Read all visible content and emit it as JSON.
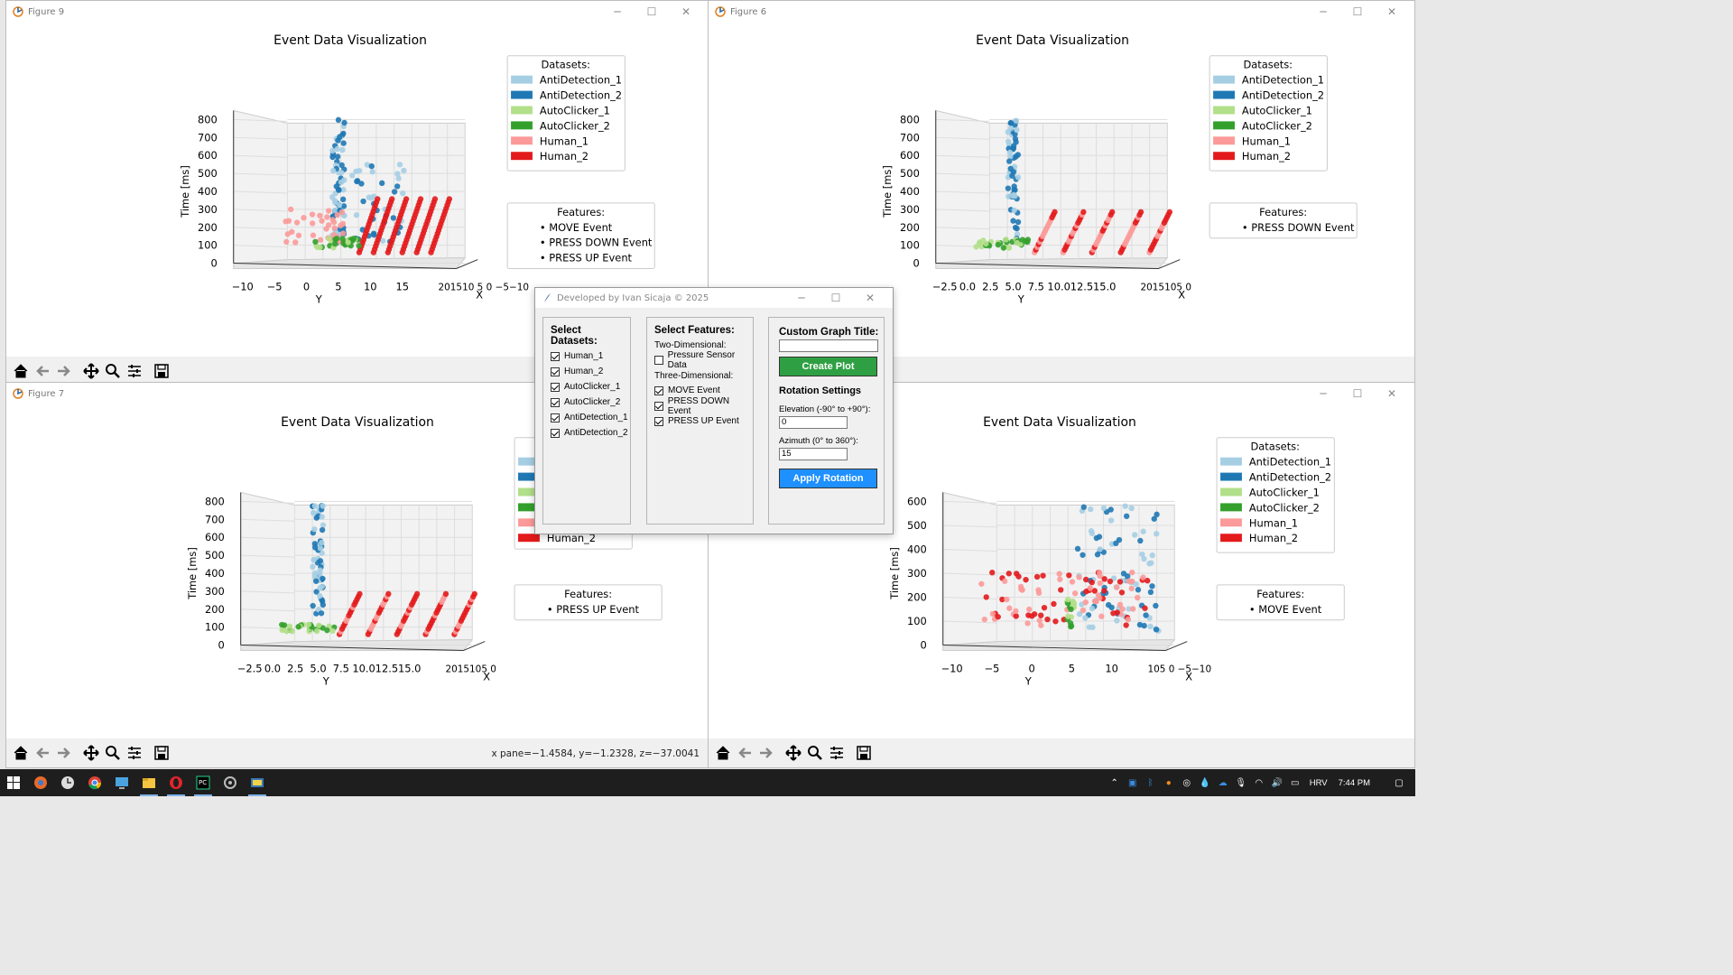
{
  "colors": {
    "AntiDetection_1": "#a6cee3",
    "AntiDetection_2": "#1f78b4",
    "AutoClicker_1": "#b2df8a",
    "AutoClicker_2": "#33a02c",
    "Human_1": "#fb9a99",
    "Human_2": "#e31a1c",
    "green_button": "#2ea043",
    "blue_button": "#1e90ff"
  },
  "windows": [
    {
      "id": "fig9",
      "title": "Figure 9",
      "chart_title": "Event Data Visualization",
      "datasets_header": "Datasets:",
      "datasets": [
        "AntiDetection_1",
        "AntiDetection_2",
        "AutoClicker_1",
        "AutoClicker_2",
        "Human_1",
        "Human_2"
      ],
      "features_header": "Features:",
      "features": [
        "• MOVE Event",
        "• PRESS DOWN Event",
        "• PRESS UP Event"
      ],
      "zlabel": "Time [ms]",
      "ylabel": "Y",
      "xlabel": "X",
      "zticks": [
        "800",
        "700",
        "600",
        "500",
        "400",
        "300",
        "200",
        "100",
        "0"
      ],
      "yticks": [
        "−10",
        "−5",
        "0",
        "5",
        "10",
        "15"
      ],
      "xticks_text": "201510 5 0 −5−10"
    },
    {
      "id": "fig6",
      "title": "Figure 6",
      "chart_title": "Event Data Visualization",
      "datasets_header": "Datasets:",
      "datasets": [
        "AntiDetection_1",
        "AntiDetection_2",
        "AutoClicker_1",
        "AutoClicker_2",
        "Human_1",
        "Human_2"
      ],
      "features_header": "Features:",
      "features": [
        "• PRESS DOWN Event"
      ],
      "zlabel": "Time [ms]",
      "ylabel": "Y",
      "xlabel": "X",
      "zticks": [
        "800",
        "700",
        "600",
        "500",
        "400",
        "300",
        "200",
        "100",
        "0"
      ],
      "yticks": [
        "−2.5",
        "0.0",
        "2.5",
        "5.0",
        "7.5",
        "10.0",
        "12.5",
        "15.0"
      ],
      "xticks_text": "2015105 0"
    },
    {
      "id": "fig7",
      "title": "Figure 7",
      "chart_title": "Event Data Visualization",
      "datasets_header": "Datasets:",
      "datasets": [
        "Human_2"
      ],
      "features_header": "Features:",
      "features": [
        "• PRESS UP Event"
      ],
      "zlabel": "Time [ms]",
      "ylabel": "Y",
      "xlabel": "X",
      "zticks": [
        "800",
        "700",
        "600",
        "500",
        "400",
        "300",
        "200",
        "100",
        "0"
      ],
      "yticks": [
        "−2.5",
        "0.0",
        "2.5",
        "5.0",
        "7.5",
        "10.0",
        "12.5",
        "15.0"
      ],
      "xticks_text": "2015105 0",
      "coords": "x pane=−1.4584, y=−1.2328, z=−37.0041"
    },
    {
      "id": "fig8",
      "title": "",
      "chart_title": "Event Data Visualization",
      "datasets_header": "Datasets:",
      "datasets": [
        "AntiDetection_1",
        "AntiDetection_2",
        "AutoClicker_1",
        "AutoClicker_2",
        "Human_1",
        "Human_2"
      ],
      "features_header": "Features:",
      "features": [
        "• MOVE Event"
      ],
      "zlabel": "Time [ms]",
      "ylabel": "Y",
      "xlabel": "X",
      "zticks": [
        "600",
        "500",
        "400",
        "300",
        "200",
        "100",
        "0"
      ],
      "yticks": [
        "−10",
        "−5",
        "0",
        "5",
        "10"
      ],
      "xticks_text": "105 0 −5−10"
    }
  ],
  "control": {
    "title": "Developed by Ivan Sicaja © 2025",
    "datasets_header": "Select Datasets:",
    "datasets": [
      {
        "label": "Human_1",
        "checked": true
      },
      {
        "label": "Human_2",
        "checked": true
      },
      {
        "label": "AutoClicker_1",
        "checked": true
      },
      {
        "label": "AutoClicker_2",
        "checked": true
      },
      {
        "label": "AntiDetection_1",
        "checked": true
      },
      {
        "label": "AntiDetection_2",
        "checked": true
      }
    ],
    "features_header": "Select Features:",
    "two_d_header": "Two-Dimensional:",
    "two_d": [
      {
        "label": "Pressure Sensor Data",
        "checked": false
      }
    ],
    "three_d_header": "Three-Dimensional:",
    "three_d": [
      {
        "label": "MOVE Event",
        "checked": true
      },
      {
        "label": "PRESS DOWN Event",
        "checked": true
      },
      {
        "label": "PRESS UP Event",
        "checked": true
      }
    ],
    "custom_title_label": "Custom Graph Title:",
    "custom_title_value": "",
    "create_button": "Create Plot",
    "rotation_header": "Rotation Settings",
    "elevation_label": "Elevation (-90° to +90°):",
    "elevation_value": "0",
    "azimuth_label": "Azimuth (0° to 360°):",
    "azimuth_value": "15",
    "apply_button": "Apply Rotation"
  },
  "taskbar": {
    "language": "HRV",
    "time": "7:44 PM"
  }
}
